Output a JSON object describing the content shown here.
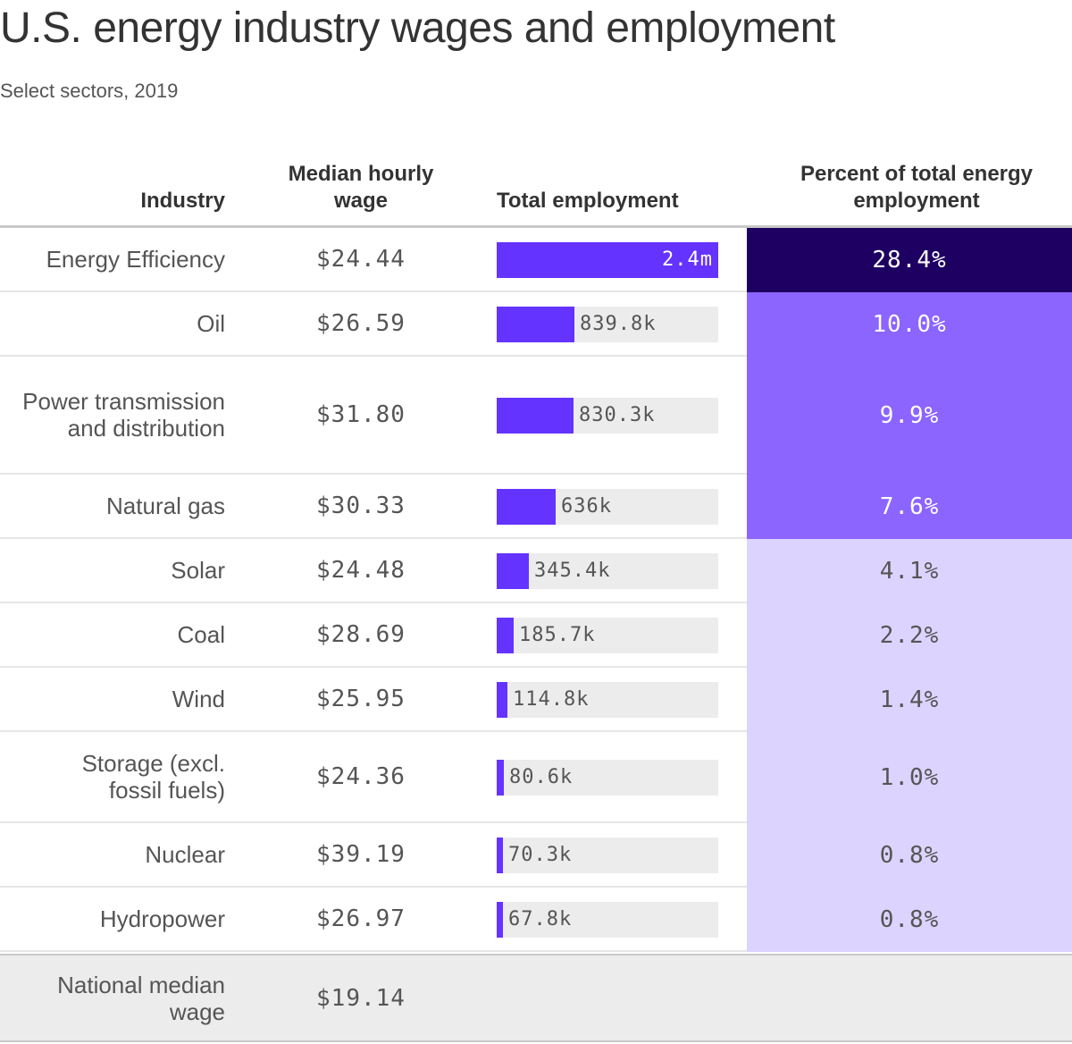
{
  "title": "U.S. energy industry wages and employment",
  "subtitle": "Select sectors, 2019",
  "colors": {
    "bar": "#6533ff",
    "bar_track": "#ececec",
    "pct_high": "#1e0062",
    "pct_mid": "#8c64ff",
    "pct_low": "#ddd3ff"
  },
  "chart_data": {
    "type": "table",
    "columns": [
      "Industry",
      "Median hourly wage",
      "Total employment",
      "Percent of total energy employment"
    ],
    "rows": [
      {
        "industry": "Energy Efficiency",
        "wage": "$24.44",
        "employment": 2400000,
        "employment_label": "2.4m",
        "percent": 28.4,
        "percent_label": "28.4%"
      },
      {
        "industry": "Oil",
        "wage": "$26.59",
        "employment": 839800,
        "employment_label": "839.8k",
        "percent": 10.0,
        "percent_label": "10.0%"
      },
      {
        "industry": "Power transmission and distribution",
        "wage": "$31.80",
        "employment": 830300,
        "employment_label": "830.3k",
        "percent": 9.9,
        "percent_label": "9.9%"
      },
      {
        "industry": "Natural gas",
        "wage": "$30.33",
        "employment": 636000,
        "employment_label": "636k",
        "percent": 7.6,
        "percent_label": "7.6%"
      },
      {
        "industry": "Solar",
        "wage": "$24.48",
        "employment": 345400,
        "employment_label": "345.4k",
        "percent": 4.1,
        "percent_label": "4.1%"
      },
      {
        "industry": "Coal",
        "wage": "$28.69",
        "employment": 185700,
        "employment_label": "185.7k",
        "percent": 2.2,
        "percent_label": "2.2%"
      },
      {
        "industry": "Wind",
        "wage": "$25.95",
        "employment": 114800,
        "employment_label": "114.8k",
        "percent": 1.4,
        "percent_label": "1.4%"
      },
      {
        "industry": "Storage (excl. fossil fuels)",
        "wage": "$24.36",
        "employment": 80600,
        "employment_label": "80.6k",
        "percent": 1.0,
        "percent_label": "1.0%"
      },
      {
        "industry": "Nuclear",
        "wage": "$39.19",
        "employment": 70300,
        "employment_label": "70.3k",
        "percent": 0.8,
        "percent_label": "0.8%"
      },
      {
        "industry": "Hydropower",
        "wage": "$26.97",
        "employment": 67800,
        "employment_label": "67.8k",
        "percent": 0.8,
        "percent_label": "0.8%"
      }
    ],
    "footer": {
      "label": "National median wage",
      "wage": "$19.14"
    },
    "employment_max": 2400000
  }
}
